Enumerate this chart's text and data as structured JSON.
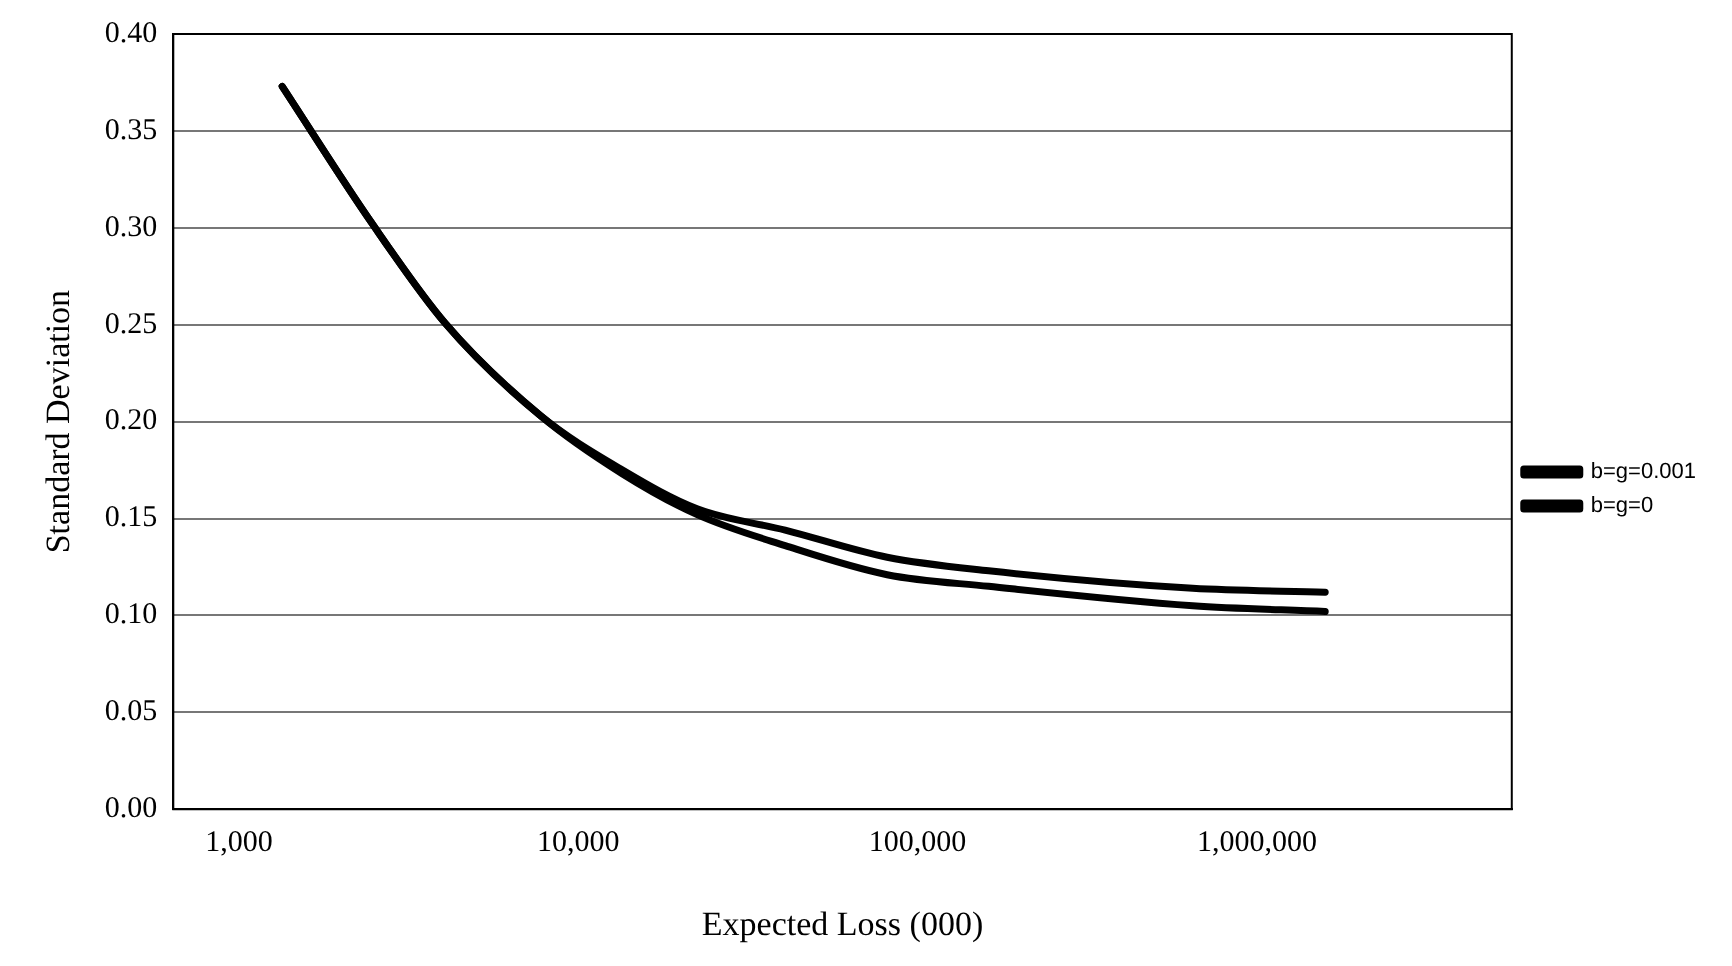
{
  "chart_data": {
    "type": "line",
    "xlabel": "Expected Loss (000)",
    "ylabel": "Standard Deviation",
    "log": "x",
    "xlim": [
      640,
      5640000
    ],
    "xticks": [
      {
        "value": 1000,
        "label": "1,000"
      },
      {
        "value": 10000,
        "label": "10,000"
      },
      {
        "value": 100000,
        "label": "100,000"
      },
      {
        "value": 1000000,
        "label": "1,000,000"
      }
    ],
    "ylim": [
      0,
      0.4
    ],
    "yticks": [
      {
        "value": 0,
        "label": "0.00"
      },
      {
        "value": 0.05,
        "label": "0.05"
      },
      {
        "value": 0.1,
        "label": "0.10"
      },
      {
        "value": 0.15,
        "label": "0.15"
      },
      {
        "value": 0.2,
        "label": "0.20"
      },
      {
        "value": 0.25,
        "label": "0.25"
      },
      {
        "value": 0.3,
        "label": "0.30"
      },
      {
        "value": 0.35,
        "label": "0.35"
      },
      {
        "value": 0.4,
        "label": "0.40"
      }
    ],
    "grid": "y",
    "legend": "right",
    "marker": "none",
    "line_style": "solid",
    "x": [
      1340,
      2450,
      4040,
      7740,
      13500,
      22400,
      40700,
      81300,
      162000,
      647000,
      1590000
    ],
    "series": [
      {
        "name": "b=g=0.001",
        "color": "#000000",
        "values": [
          0.373,
          0.303,
          0.251,
          0.203,
          0.175,
          0.155,
          0.144,
          0.13,
          0.123,
          0.114,
          0.112
        ]
      },
      {
        "name": "b=g=0",
        "color": "#000000",
        "values": [
          0.373,
          0.303,
          0.251,
          0.203,
          0.173,
          0.152,
          0.136,
          0.121,
          0.115,
          0.105,
          0.102
        ]
      }
    ]
  }
}
